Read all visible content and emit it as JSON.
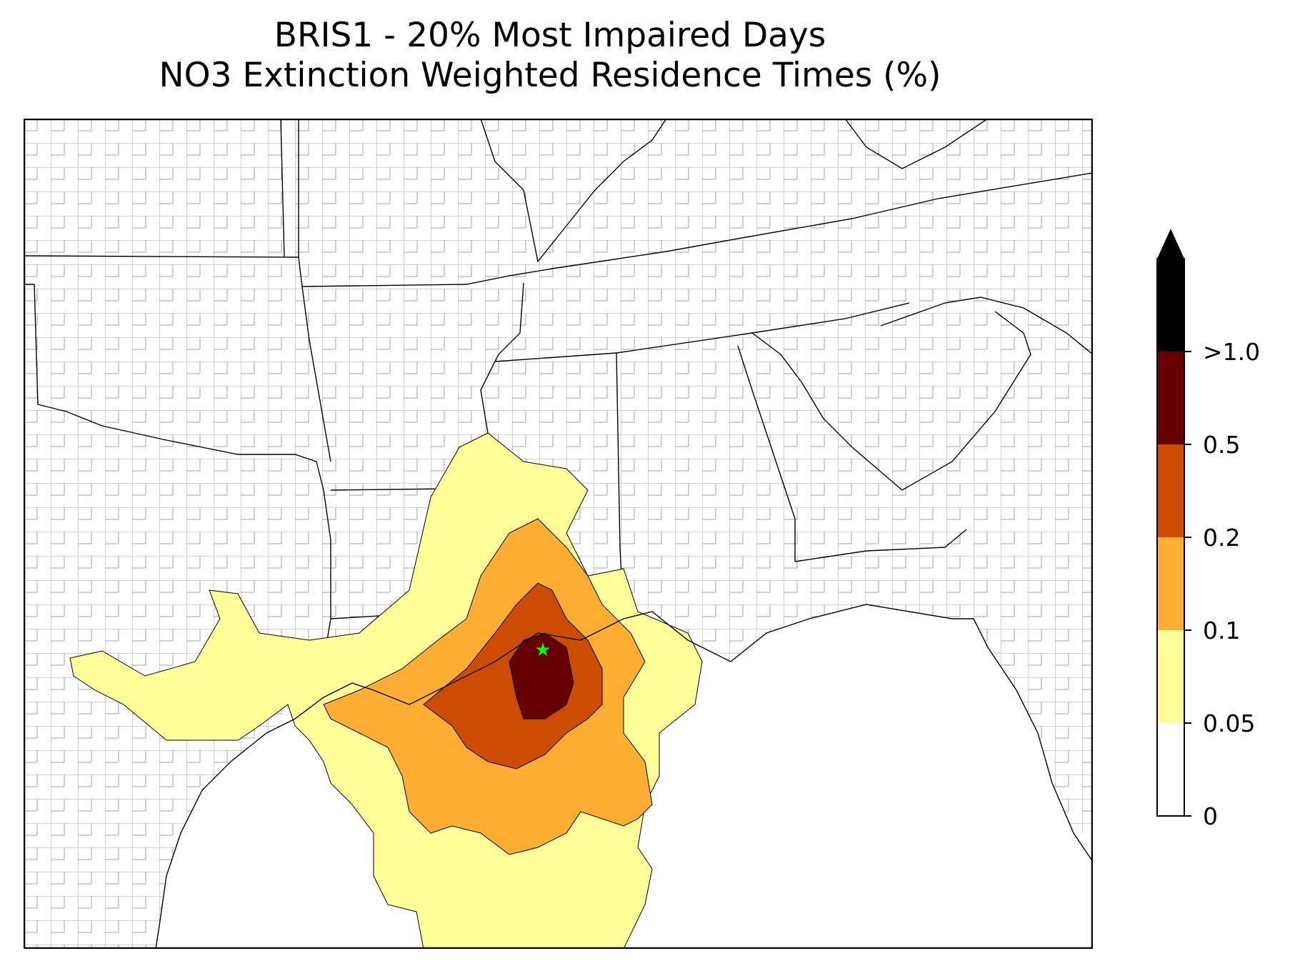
{
  "title": {
    "line1": "BRIS1 - 20% Most Impaired Days",
    "line2": "NO3 Extinction Weighted Residence Times (%)"
  },
  "legend": {
    "levels": [
      {
        "label": "0",
        "color": "#ffffff"
      },
      {
        "label": "0.05",
        "color": "#ffff99"
      },
      {
        "label": "0.1",
        "color": "#fdae33"
      },
      {
        "label": "0.2",
        "color": "#cc4c02"
      },
      {
        "label": "0.5",
        "color": "#660000"
      },
      {
        "label": ">1.0",
        "color": "#000000"
      }
    ]
  },
  "colors": {
    "state_border": "#000000",
    "county_border": "#a0a0a0",
    "site_marker": "#00ff00"
  }
}
